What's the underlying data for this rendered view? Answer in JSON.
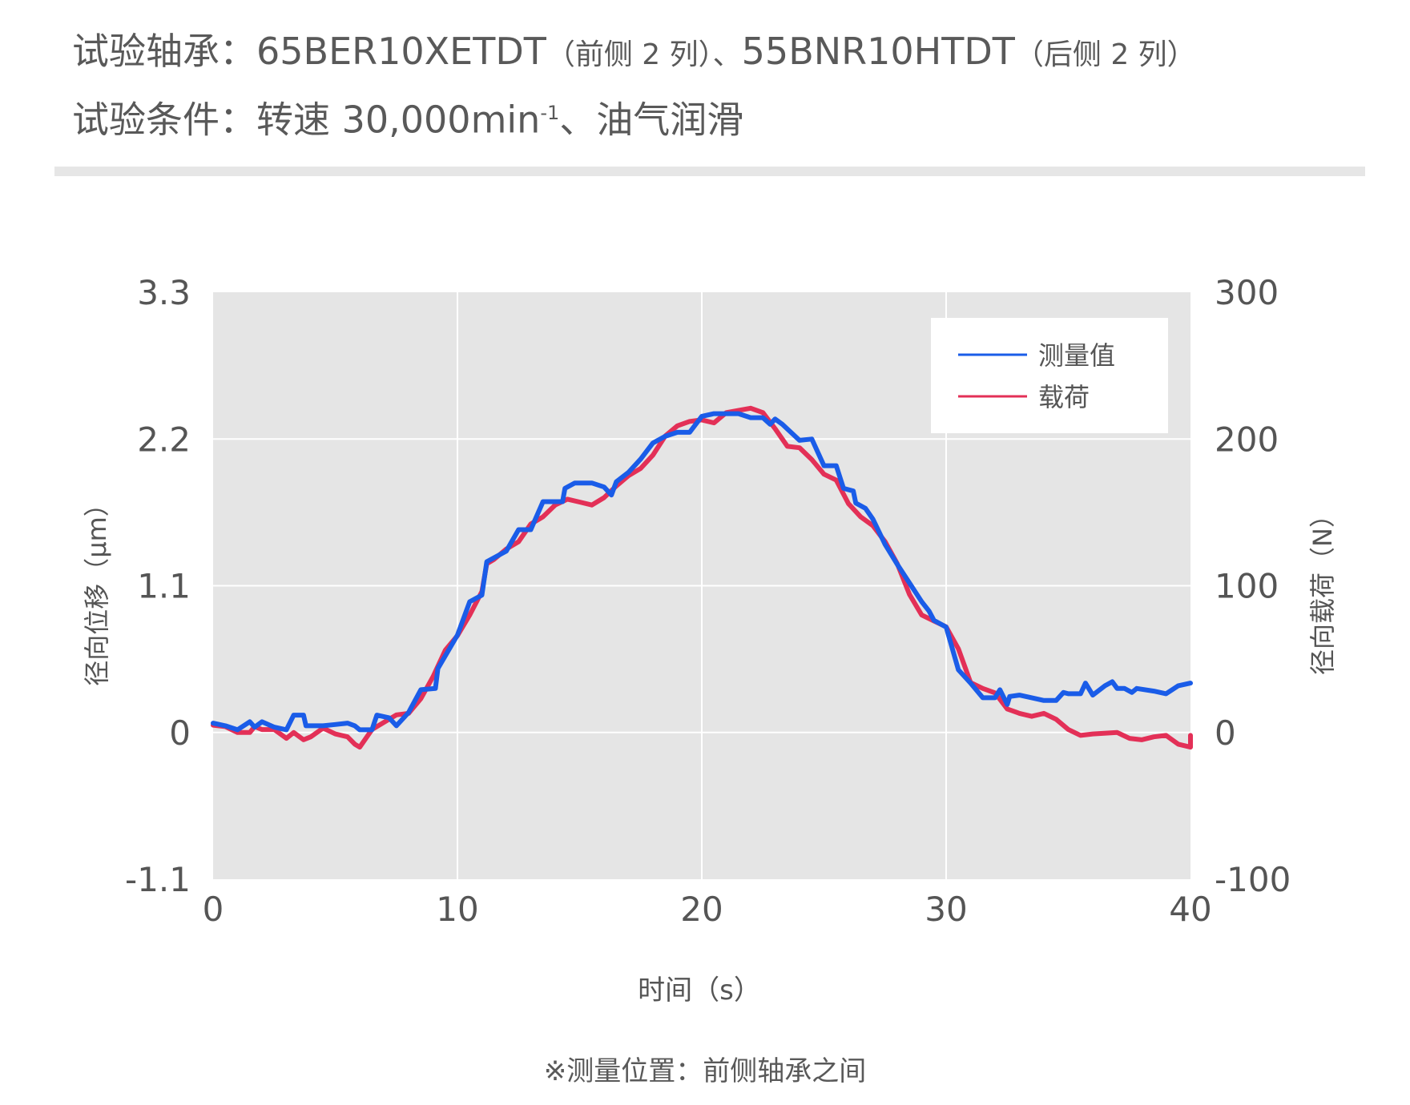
{
  "header": {
    "line1_label": "试验轴承：",
    "line1_front": "65BER10XETDT",
    "line1_front_note": "（前侧 2 列）、",
    "line1_rear": "55BNR10HTDT",
    "line1_rear_note": "（后侧 2 列）",
    "line2_label": "试验条件：",
    "line2_speed": "转速 30,000min",
    "line2_sup": "-1",
    "line2_rest": "、油气润滑"
  },
  "footer": {
    "note": "※测量位置：前侧轴承之间"
  },
  "colors": {
    "measured": "#1a5ce8",
    "load": "#e33057",
    "plot_bg": "#e5e5e5",
    "grid": "#ffffff"
  },
  "chart_data": {
    "type": "line",
    "xlabel": "时间（s）",
    "ylabel_left": "径向位移（μm）",
    "ylabel_right": "径向载荷（N）",
    "xlim": [
      0,
      40
    ],
    "ylim_left": [
      -1.1,
      3.3
    ],
    "ylim_right": [
      -100,
      300
    ],
    "xticks": [
      "0",
      "10",
      "20",
      "30",
      "40"
    ],
    "yticks_left": [
      "-1.1",
      "0",
      "1.1",
      "2.2",
      "3.3"
    ],
    "yticks_right": [
      "-100",
      "0",
      "100",
      "200",
      "300"
    ],
    "grid": true,
    "legend_position": "top-right",
    "series": [
      {
        "name": "测量值",
        "axis": "left",
        "points": [
          [
            0,
            0.07
          ],
          [
            0.5,
            0.05
          ],
          [
            1,
            0.02
          ],
          [
            1.5,
            0.08
          ],
          [
            1.7,
            0.04
          ],
          [
            2,
            0.08
          ],
          [
            2.5,
            0.04
          ],
          [
            3,
            0.02
          ],
          [
            3.3,
            0.13
          ],
          [
            3.7,
            0.13
          ],
          [
            3.8,
            0.05
          ],
          [
            4.5,
            0.05
          ],
          [
            5,
            0.06
          ],
          [
            5.5,
            0.07
          ],
          [
            5.8,
            0.05
          ],
          [
            6,
            0.02
          ],
          [
            6.5,
            0.02
          ],
          [
            6.7,
            0.13
          ],
          [
            7.2,
            0.11
          ],
          [
            7.5,
            0.05
          ],
          [
            8,
            0.15
          ],
          [
            8.5,
            0.32
          ],
          [
            9.1,
            0.33
          ],
          [
            9.2,
            0.48
          ],
          [
            10,
            0.73
          ],
          [
            10.5,
            0.98
          ],
          [
            11,
            1.03
          ],
          [
            11.2,
            1.28
          ],
          [
            12,
            1.36
          ],
          [
            12.5,
            1.52
          ],
          [
            13,
            1.52
          ],
          [
            13.5,
            1.73
          ],
          [
            14.3,
            1.73
          ],
          [
            14.4,
            1.83
          ],
          [
            14.8,
            1.87
          ],
          [
            15.5,
            1.87
          ],
          [
            16,
            1.84
          ],
          [
            16.3,
            1.78
          ],
          [
            16.5,
            1.88
          ],
          [
            17,
            1.95
          ],
          [
            17.5,
            2.05
          ],
          [
            18,
            2.17
          ],
          [
            18.5,
            2.22
          ],
          [
            19,
            2.25
          ],
          [
            19.5,
            2.25
          ],
          [
            20,
            2.37
          ],
          [
            20.5,
            2.39
          ],
          [
            21.5,
            2.39
          ],
          [
            22,
            2.36
          ],
          [
            22.5,
            2.36
          ],
          [
            22.8,
            2.31
          ],
          [
            23,
            2.35
          ],
          [
            23.3,
            2.31
          ],
          [
            24,
            2.19
          ],
          [
            24.5,
            2.2
          ],
          [
            25,
            2.0
          ],
          [
            25.5,
            2.0
          ],
          [
            25.8,
            1.83
          ],
          [
            26.2,
            1.81
          ],
          [
            26.3,
            1.72
          ],
          [
            26.7,
            1.68
          ],
          [
            27,
            1.6
          ],
          [
            27.5,
            1.41
          ],
          [
            28,
            1.26
          ],
          [
            28.5,
            1.12
          ],
          [
            29,
            0.98
          ],
          [
            29.3,
            0.91
          ],
          [
            29.5,
            0.84
          ],
          [
            30,
            0.79
          ],
          [
            30.5,
            0.47
          ],
          [
            31,
            0.37
          ],
          [
            31.5,
            0.26
          ],
          [
            32,
            0.26
          ],
          [
            32.2,
            0.32
          ],
          [
            32.5,
            0.21
          ],
          [
            32.6,
            0.27
          ],
          [
            33,
            0.28
          ],
          [
            33.5,
            0.26
          ],
          [
            34,
            0.24
          ],
          [
            34.5,
            0.24
          ],
          [
            34.8,
            0.3
          ],
          [
            35,
            0.29
          ],
          [
            35.5,
            0.29
          ],
          [
            35.7,
            0.37
          ],
          [
            36,
            0.28
          ],
          [
            36.5,
            0.35
          ],
          [
            36.8,
            0.38
          ],
          [
            37,
            0.33
          ],
          [
            37.3,
            0.33
          ],
          [
            37.6,
            0.3
          ],
          [
            37.8,
            0.33
          ],
          [
            38.5,
            0.31
          ],
          [
            39,
            0.29
          ],
          [
            39.5,
            0.35
          ],
          [
            40,
            0.37
          ],
          [
            40.5,
            0.37
          ]
        ]
      },
      {
        "name": "载荷",
        "axis": "right",
        "points": [
          [
            0,
            5
          ],
          [
            0.5,
            4
          ],
          [
            1,
            0
          ],
          [
            1.5,
            0
          ],
          [
            1.7,
            4
          ],
          [
            2,
            2
          ],
          [
            2.5,
            2
          ],
          [
            3,
            -4
          ],
          [
            3.3,
            0
          ],
          [
            3.7,
            -5
          ],
          [
            4,
            -3
          ],
          [
            4.5,
            3
          ],
          [
            5,
            -1
          ],
          [
            5.5,
            -3
          ],
          [
            5.8,
            -8
          ],
          [
            6,
            -10
          ],
          [
            6.5,
            2
          ],
          [
            7,
            7
          ],
          [
            7.5,
            12
          ],
          [
            8,
            13
          ],
          [
            8.5,
            23
          ],
          [
            9,
            38
          ],
          [
            9.5,
            56
          ],
          [
            10,
            66
          ],
          [
            10.5,
            80
          ],
          [
            11,
            96
          ],
          [
            11.2,
            115
          ],
          [
            11.5,
            118
          ],
          [
            12,
            125
          ],
          [
            12.5,
            130
          ],
          [
            13,
            142
          ],
          [
            13.5,
            147
          ],
          [
            14,
            155
          ],
          [
            14.5,
            159
          ],
          [
            15,
            157
          ],
          [
            15.5,
            155
          ],
          [
            16,
            160
          ],
          [
            16.5,
            168
          ],
          [
            17,
            175
          ],
          [
            17.5,
            180
          ],
          [
            18,
            189
          ],
          [
            18.5,
            202
          ],
          [
            19,
            209
          ],
          [
            19.5,
            212
          ],
          [
            20,
            213
          ],
          [
            20.5,
            211
          ],
          [
            21,
            218
          ],
          [
            22,
            221
          ],
          [
            22.5,
            218
          ],
          [
            23,
            207
          ],
          [
            23.5,
            195
          ],
          [
            24,
            194
          ],
          [
            24.5,
            186
          ],
          [
            25,
            176
          ],
          [
            25.5,
            172
          ],
          [
            26,
            156
          ],
          [
            26.5,
            147
          ],
          [
            27,
            141
          ],
          [
            27.5,
            130
          ],
          [
            28,
            115
          ],
          [
            28.5,
            94
          ],
          [
            29,
            80
          ],
          [
            29.5,
            76
          ],
          [
            30,
            72
          ],
          [
            30.5,
            57
          ],
          [
            31,
            34
          ],
          [
            31.5,
            30
          ],
          [
            32,
            27
          ],
          [
            32.5,
            16
          ],
          [
            33,
            13
          ],
          [
            33.5,
            11
          ],
          [
            34,
            13
          ],
          [
            34.5,
            9
          ],
          [
            35,
            2
          ],
          [
            35.5,
            -2
          ],
          [
            36,
            -1
          ],
          [
            37,
            0
          ],
          [
            37.5,
            -4
          ],
          [
            38,
            -5
          ],
          [
            38.5,
            -3
          ],
          [
            39,
            -2
          ],
          [
            39.5,
            -8
          ],
          [
            40,
            -10
          ],
          [
            40.5,
            -2
          ],
          [
            41,
            -4
          ]
        ]
      }
    ]
  }
}
